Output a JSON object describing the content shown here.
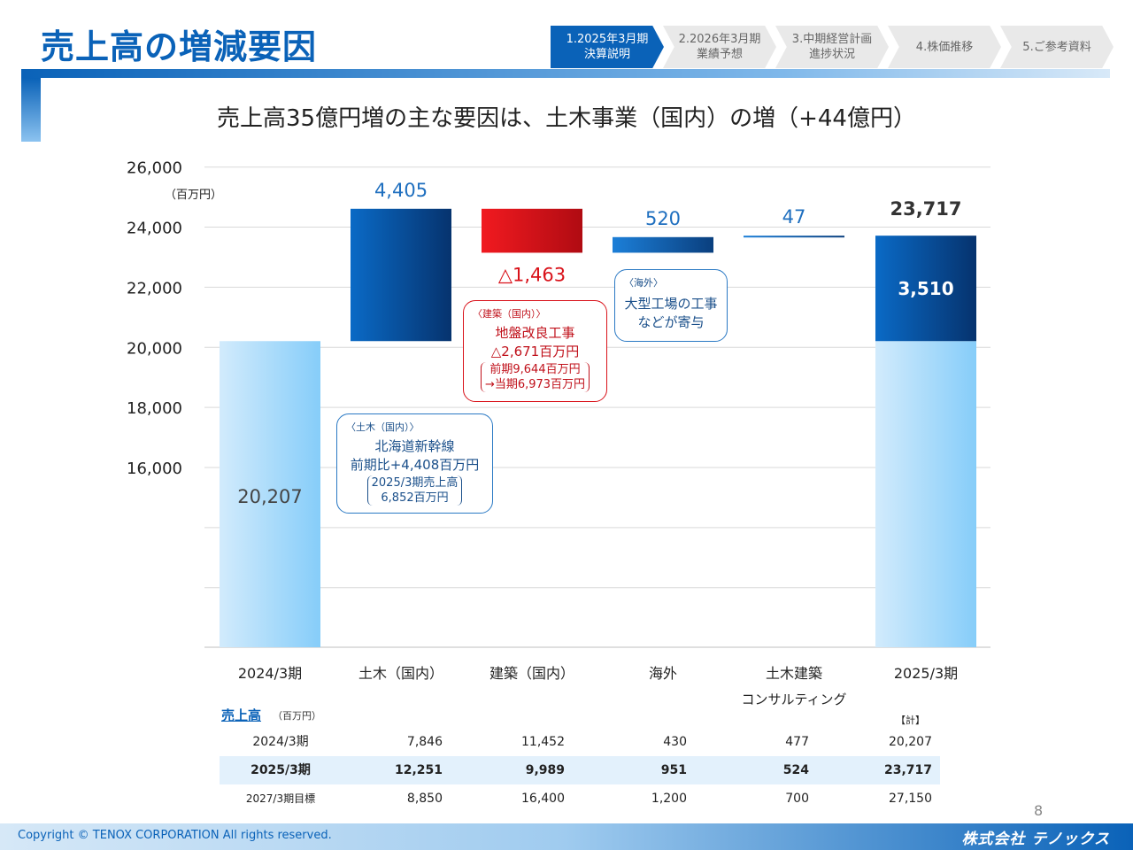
{
  "page_title": "売上高の増減要因",
  "nav": [
    {
      "line1": "1.2025年3月期",
      "line2": "決算説明",
      "active": true
    },
    {
      "line1": "2.2026年3月期",
      "line2": "業績予想",
      "active": false
    },
    {
      "line1": "3.中期経営計画",
      "line2": "進捗状況",
      "active": false
    },
    {
      "line1": "4.株価推移",
      "line2": "",
      "active": false
    },
    {
      "line1": "5.ご参考資料",
      "line2": "",
      "active": false
    }
  ],
  "subtitle": "売上高35億円増の主な要因は、土木事業（国内）の増（+44億円）",
  "chart_data": {
    "type": "bar",
    "subtype": "waterfall",
    "unit_label": "（百万円）",
    "ylim": [
      10000,
      26000
    ],
    "yticks": [
      16000,
      18000,
      20000,
      22000,
      24000,
      26000
    ],
    "ytick_labels": [
      "16,000",
      "18,000",
      "20,000",
      "22,000",
      "24,000",
      "26,000"
    ],
    "grid": true,
    "categories": [
      {
        "label": "2024/3期",
        "label2": ""
      },
      {
        "label": "土木（国内）",
        "label2": ""
      },
      {
        "label": "建築（国内）",
        "label2": ""
      },
      {
        "label": "海外",
        "label2": ""
      },
      {
        "label": "土木建築",
        "label2": "コンサルティング"
      },
      {
        "label": "2025/3期",
        "label2": ""
      }
    ],
    "steps": [
      {
        "kind": "total",
        "value": 20207,
        "label": "20,207"
      },
      {
        "kind": "delta",
        "value": 4405,
        "label": "4,405"
      },
      {
        "kind": "delta",
        "value": -1463,
        "label": "△1,463"
      },
      {
        "kind": "delta",
        "value": 520,
        "label": "520"
      },
      {
        "kind": "delta",
        "value": 47,
        "label": "47"
      },
      {
        "kind": "total",
        "value": 23717,
        "label": "23,717",
        "increase": 3510,
        "increase_label": "3,510"
      }
    ]
  },
  "callouts": {
    "civil": {
      "tag": "〈土木（国内）〉",
      "line1": "北海道新幹線",
      "line2": "前期比+4,408百万円",
      "sub1": "2025/3期売上高",
      "sub2": "6,852百万円"
    },
    "arch": {
      "tag": "〈建築（国内）〉",
      "line1": "地盤改良工事",
      "line2": "△2,671百万円",
      "sub1": "前期9,644百万円",
      "sub2": "→当期6,973百万円"
    },
    "overseas": {
      "tag": "〈海外〉",
      "line1": "大型工場の工事",
      "line2": "などが寄与"
    }
  },
  "table": {
    "title": "売上高",
    "unit": "（百万円）",
    "total_header": "【計】",
    "rows": [
      {
        "label": "2024/3期",
        "values": [
          "7,846",
          "11,452",
          "430",
          "477",
          "20,207"
        ],
        "highlight": false
      },
      {
        "label": "2025/3期",
        "values": [
          "12,251",
          "9,989",
          "951",
          "524",
          "23,717"
        ],
        "highlight": true
      },
      {
        "label": "2027/3期目標",
        "values": [
          "8,850",
          "16,400",
          "1,200",
          "700",
          "27,150"
        ],
        "highlight": false
      }
    ]
  },
  "page_number": "8",
  "footer": {
    "copyright": "Copyright © TENOX CORPORATION All rights reserved.",
    "logo": "株式会社 テノックス"
  }
}
